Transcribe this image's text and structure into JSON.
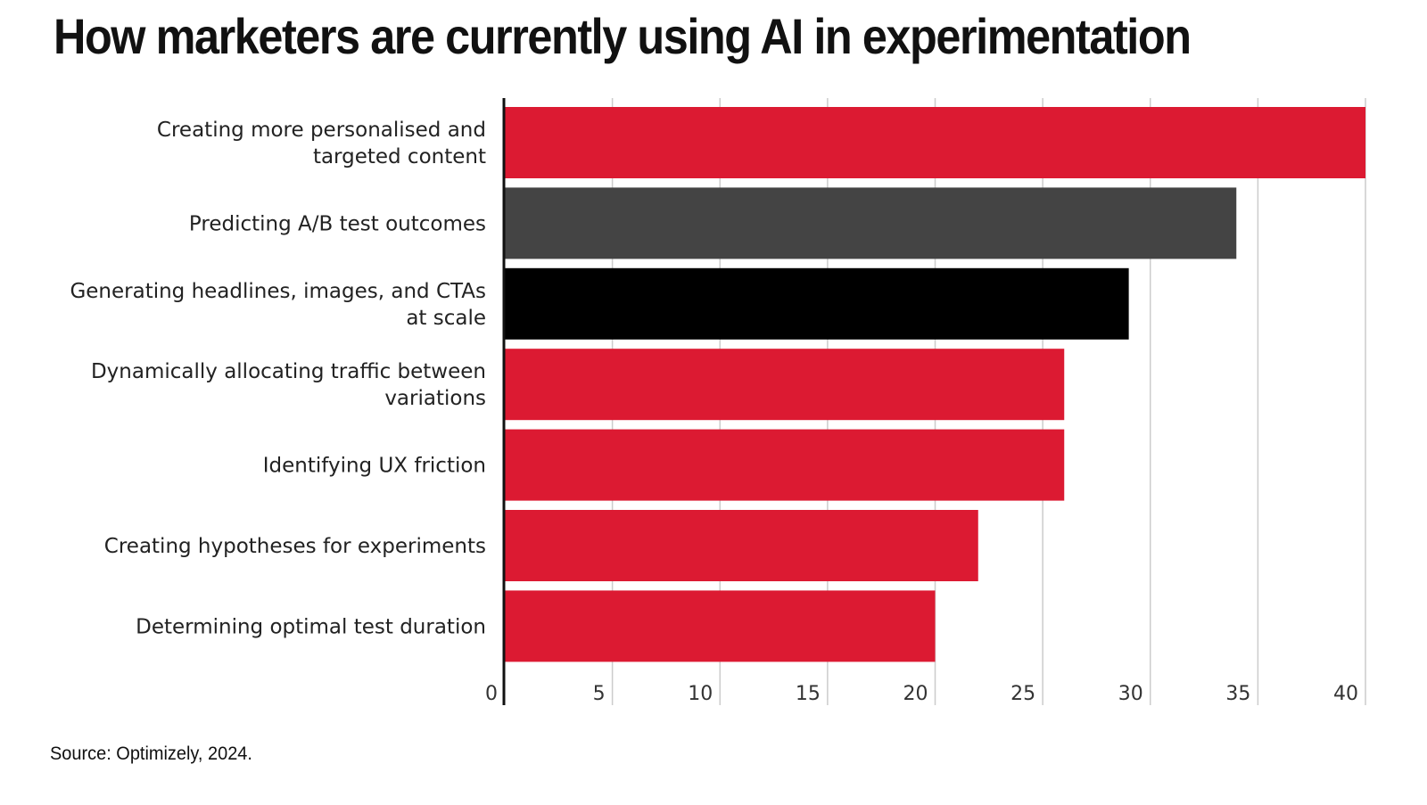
{
  "chart_data": {
    "type": "bar",
    "orientation": "horizontal",
    "title": "How marketers are currently using AI in experimentation",
    "categories": [
      "Creating more personalised and targeted content",
      "Predicting A/B test outcomes",
      "Generating headlines, images, and CTAs at scale",
      "Dynamically allocating traffic between variations",
      "Identifying UX friction",
      "Creating hypotheses for experiments",
      "Determining optimal test duration"
    ],
    "category_lines": [
      [
        "Creating more personalised and",
        "targeted content"
      ],
      [
        "Predicting A/B test outcomes"
      ],
      [
        "Generating headlines, images, and CTAs",
        "at scale"
      ],
      [
        "Dynamically allocating traffic between",
        "variations"
      ],
      [
        "Identifying UX friction"
      ],
      [
        "Creating hypotheses for experiments"
      ],
      [
        "Determining optimal test duration"
      ]
    ],
    "values": [
      40,
      34,
      29,
      26,
      26,
      22,
      20
    ],
    "bar_colors": [
      "#dc1a32",
      "#444444",
      "#000000",
      "#dc1a32",
      "#dc1a32",
      "#dc1a32",
      "#dc1a32"
    ],
    "xlim": [
      0,
      40
    ],
    "xticks": [
      0,
      5,
      10,
      15,
      20,
      25,
      30,
      35,
      40
    ],
    "xlabel": "",
    "ylabel": "",
    "grid": "vertical",
    "legend": "none"
  },
  "source": "Source: Optimizely, 2024.",
  "colors": {
    "grid": "#cccccc",
    "axis": "#111111"
  }
}
